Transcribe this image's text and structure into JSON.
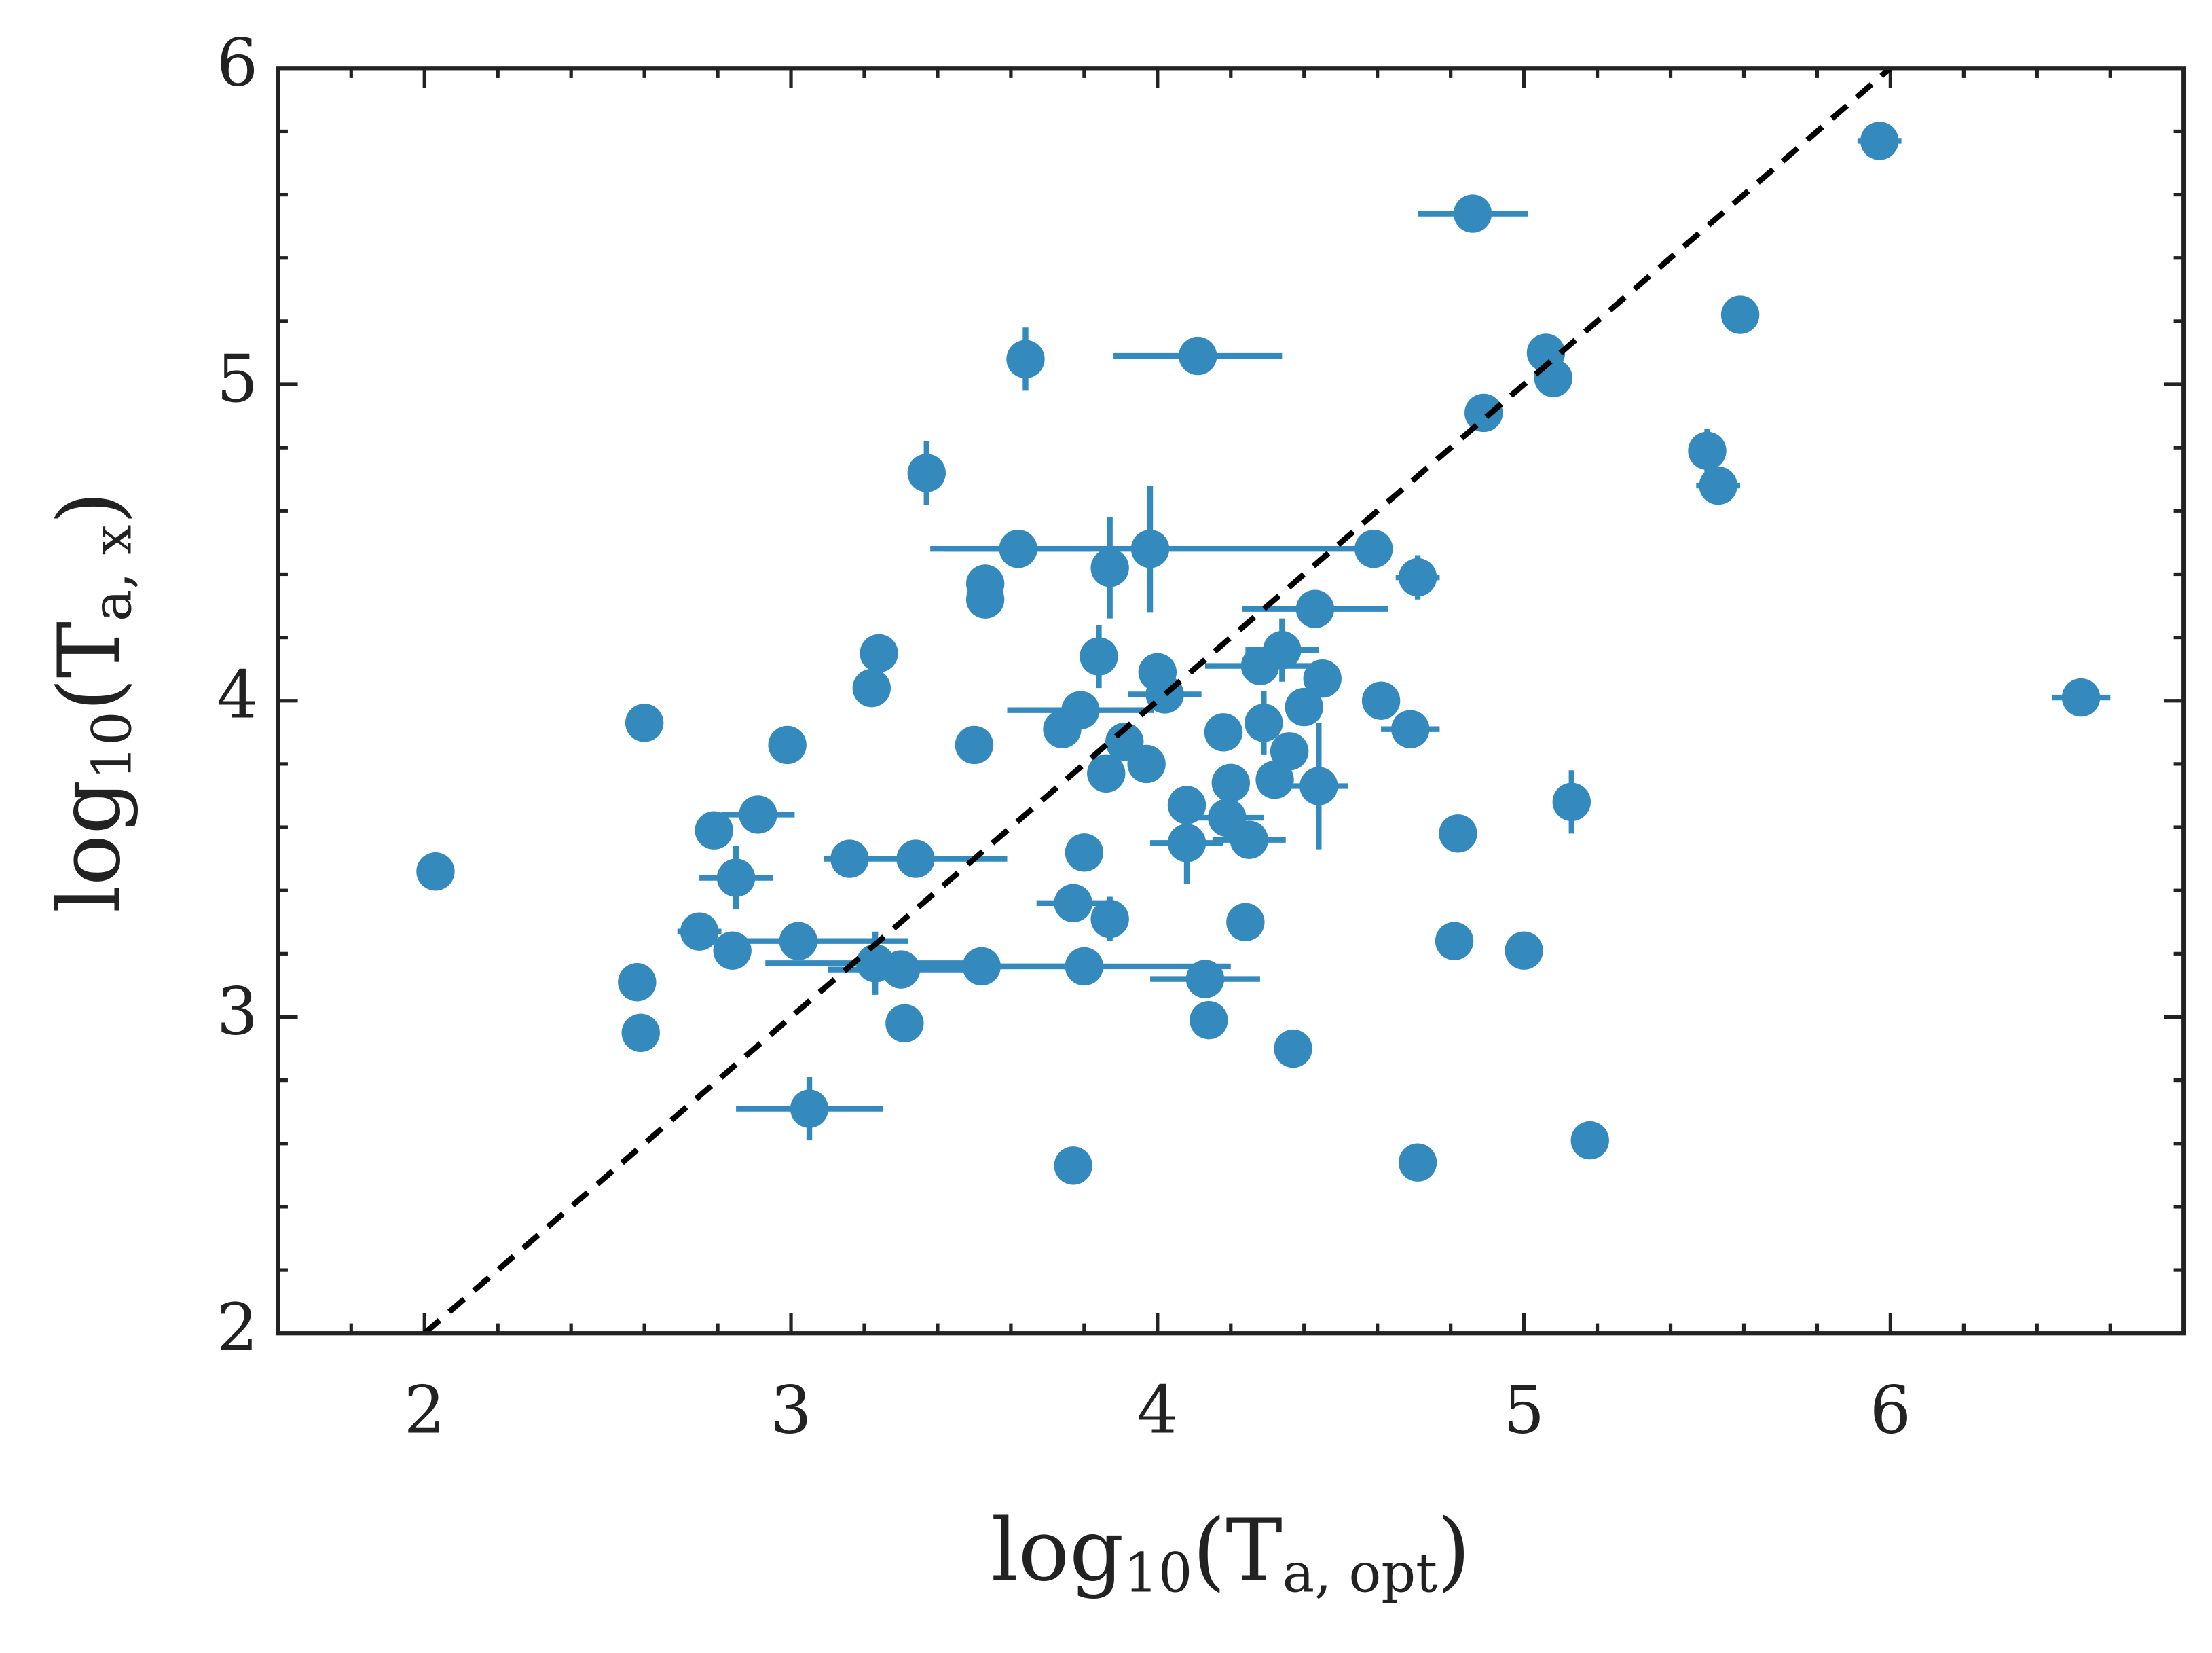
{
  "chart_data": {
    "type": "scatter",
    "x_label": [
      {
        "text": "log"
      },
      {
        "text": "10",
        "sub": true
      },
      {
        "text": "(T"
      },
      {
        "text": "a, opt",
        "sub": true
      },
      {
        "text": ")"
      }
    ],
    "y_label": [
      {
        "text": "log"
      },
      {
        "text": "10",
        "sub": true
      },
      {
        "text": "(T"
      },
      {
        "text": "a, x",
        "sub": true
      },
      {
        "text": ")"
      }
    ],
    "xlim": [
      1.6,
      6.8
    ],
    "ylim": [
      2,
      6
    ],
    "xticks": [
      2,
      3,
      4,
      5,
      6
    ],
    "yticks": [
      2,
      3,
      4,
      5,
      6
    ],
    "xminorticks": [
      1.8,
      2.2,
      2.4,
      2.6,
      2.8,
      3.2,
      3.4,
      3.6,
      3.8,
      4.2,
      4.4,
      4.6,
      4.8,
      5.2,
      5.4,
      5.6,
      5.8,
      6.2,
      6.4,
      6.6
    ],
    "yminorticks": [
      2.2,
      2.4,
      2.6,
      2.8,
      3.2,
      3.4,
      3.6,
      3.8,
      4.2,
      4.4,
      4.6,
      4.8,
      5.2,
      5.4,
      5.6,
      5.8
    ],
    "reference_line": {
      "x": [
        2,
        6
      ],
      "y": [
        2,
        6
      ],
      "color": "#000000",
      "dashed": true
    },
    "series": [
      {
        "color": "#348abd",
        "x": [
          2.03,
          2.6,
          2.58,
          2.59,
          2.75,
          2.79,
          2.85,
          2.84,
          2.91,
          2.99,
          3.02,
          3.05,
          3.16,
          3.34,
          3.23,
          3.3,
          3.31,
          3.22,
          3.24,
          3.37,
          3.52,
          3.5,
          3.53,
          3.53,
          3.62,
          3.64,
          3.8,
          3.77,
          3.77,
          3.8,
          3.87,
          3.87,
          3.84,
          3.74,
          3.79,
          3.91,
          3.86,
          3.97,
          3.98,
          4.0,
          4.02,
          4.08,
          4.08,
          4.11,
          4.13,
          4.14,
          4.18,
          4.19,
          4.2,
          4.24,
          4.25,
          4.28,
          4.29,
          4.32,
          4.34,
          4.36,
          4.37,
          4.4,
          4.43,
          4.44,
          4.45,
          4.59,
          4.61,
          4.69,
          4.71,
          4.71,
          4.81,
          4.82,
          4.86,
          4.89,
          5.0,
          5.06,
          5.08,
          5.13,
          5.18,
          5.5,
          5.53,
          5.59,
          5.97,
          6.52
        ],
        "values": [
          3.46,
          3.93,
          3.11,
          2.95,
          3.27,
          3.59,
          3.44,
          3.21,
          3.64,
          3.86,
          3.24,
          2.71,
          3.5,
          3.5,
          3.17,
          3.15,
          2.98,
          4.04,
          4.15,
          4.72,
          3.16,
          3.86,
          4.37,
          4.32,
          4.48,
          5.08,
          3.16,
          2.53,
          3.36,
          3.52,
          3.31,
          4.42,
          4.14,
          3.91,
          3.97,
          3.87,
          3.77,
          3.8,
          4.48,
          4.09,
          4.02,
          3.67,
          3.55,
          5.09,
          3.12,
          2.99,
          3.9,
          3.63,
          3.74,
          3.3,
          3.56,
          4.11,
          3.93,
          3.75,
          4.16,
          3.84,
          2.9,
          3.98,
          4.29,
          3.73,
          4.07,
          4.48,
          4.0,
          3.91,
          4.39,
          2.54,
          3.24,
          3.58,
          5.54,
          4.91,
          3.21,
          5.1,
          5.02,
          3.68,
          2.61,
          4.79,
          4.68,
          5.22,
          5.77,
          4.01
        ],
        "xerr": [
          null,
          null,
          null,
          null,
          0.06,
          null,
          0.1,
          0.05,
          0.1,
          null,
          0.3,
          0.2,
          null,
          0.25,
          0.3,
          0.2,
          null,
          null,
          null,
          0.05,
          0.3,
          null,
          null,
          null,
          0.2,
          0.03,
          0.4,
          null,
          0.1,
          null,
          0.05,
          0.04,
          0.03,
          null,
          0.2,
          null,
          0.05,
          null,
          0.6,
          0.04,
          0.1,
          0.05,
          0.1,
          0.23,
          0.15,
          null,
          0.05,
          0.1,
          0.05,
          0.04,
          0.1,
          0.15,
          0.05,
          0.05,
          0.1,
          0.05,
          null,
          0.05,
          0.2,
          0.08,
          0.05,
          null,
          0.05,
          0.08,
          0.06,
          null,
          0.04,
          0.05,
          0.15,
          null,
          0.04,
          null,
          null,
          0.03,
          null,
          0.03,
          0.06,
          null,
          0.06,
          0.08
        ],
        "yerr": [
          null,
          null,
          null,
          null,
          null,
          null,
          0.1,
          null,
          null,
          null,
          null,
          0.1,
          null,
          null,
          0.1,
          null,
          null,
          null,
          null,
          0.1,
          null,
          null,
          null,
          null,
          null,
          0.1,
          null,
          null,
          null,
          null,
          0.07,
          0.16,
          0.1,
          null,
          null,
          0.05,
          0.05,
          null,
          0.2,
          null,
          null,
          0.06,
          0.13,
          0.06,
          null,
          null,
          null,
          0.05,
          null,
          0.05,
          0.05,
          0.05,
          0.1,
          0.05,
          0.1,
          0.05,
          null,
          0.05,
          0.05,
          0.2,
          0.05,
          null,
          null,
          0.04,
          0.07,
          null,
          null,
          0.04,
          null,
          null,
          0.04,
          null,
          null,
          0.1,
          null,
          0.07,
          0.05,
          null,
          0.05,
          null
        ]
      }
    ]
  }
}
